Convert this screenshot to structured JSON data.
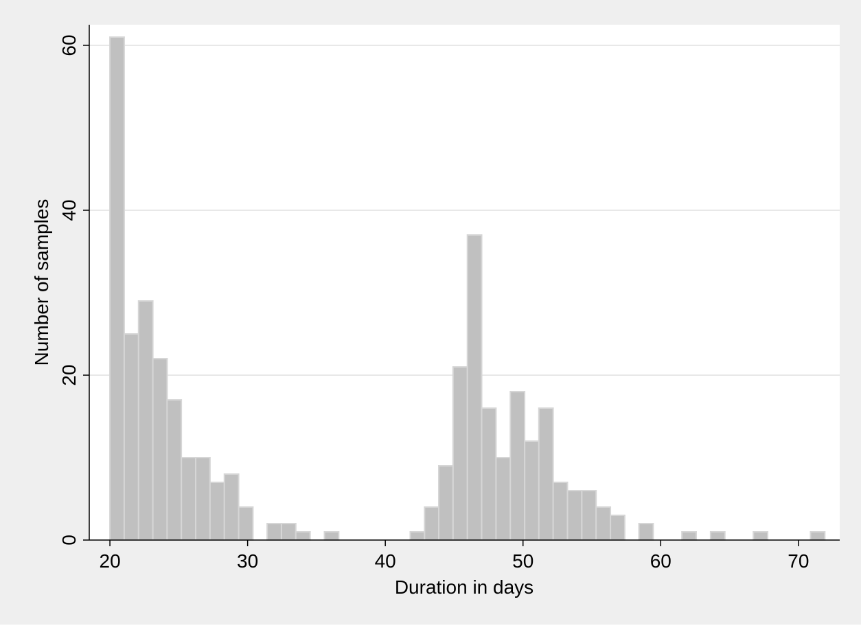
{
  "chart_data": {
    "type": "bar",
    "xlabel": "Duration in days",
    "ylabel": "Number of samples",
    "xlim": [
      18.5,
      73
    ],
    "ylim": [
      0,
      62.5
    ],
    "x_ticks": [
      20,
      30,
      40,
      50,
      60,
      70
    ],
    "y_ticks": [
      0,
      20,
      40,
      60
    ],
    "grid": true,
    "bin_width": 1.0385,
    "bins": [
      {
        "x0": 20.0,
        "value": 61
      },
      {
        "x0": 21.04,
        "value": 25
      },
      {
        "x0": 22.08,
        "value": 29
      },
      {
        "x0": 23.12,
        "value": 22
      },
      {
        "x0": 24.15,
        "value": 17
      },
      {
        "x0": 25.19,
        "value": 10
      },
      {
        "x0": 26.23,
        "value": 10
      },
      {
        "x0": 27.27,
        "value": 7
      },
      {
        "x0": 28.31,
        "value": 8
      },
      {
        "x0": 29.35,
        "value": 4
      },
      {
        "x0": 31.42,
        "value": 2
      },
      {
        "x0": 32.46,
        "value": 2
      },
      {
        "x0": 33.5,
        "value": 1
      },
      {
        "x0": 35.58,
        "value": 1
      },
      {
        "x0": 41.81,
        "value": 1
      },
      {
        "x0": 42.85,
        "value": 4
      },
      {
        "x0": 43.88,
        "value": 9
      },
      {
        "x0": 44.92,
        "value": 21
      },
      {
        "x0": 45.96,
        "value": 37
      },
      {
        "x0": 47.0,
        "value": 16
      },
      {
        "x0": 48.04,
        "value": 10
      },
      {
        "x0": 49.08,
        "value": 18
      },
      {
        "x0": 50.12,
        "value": 12
      },
      {
        "x0": 51.15,
        "value": 16
      },
      {
        "x0": 52.19,
        "value": 7
      },
      {
        "x0": 53.23,
        "value": 6
      },
      {
        "x0": 54.27,
        "value": 6
      },
      {
        "x0": 55.31,
        "value": 4
      },
      {
        "x0": 56.35,
        "value": 3
      },
      {
        "x0": 58.42,
        "value": 2
      },
      {
        "x0": 61.54,
        "value": 1
      },
      {
        "x0": 63.62,
        "value": 1
      },
      {
        "x0": 66.73,
        "value": 1
      },
      {
        "x0": 70.88,
        "value": 1
      }
    ],
    "colors": {
      "bar_fill": "#c0c0c0",
      "bar_stroke": "#d6d6d6",
      "grid": "#e8e8e8",
      "frame": "#efefef",
      "axis": "#000000"
    }
  }
}
